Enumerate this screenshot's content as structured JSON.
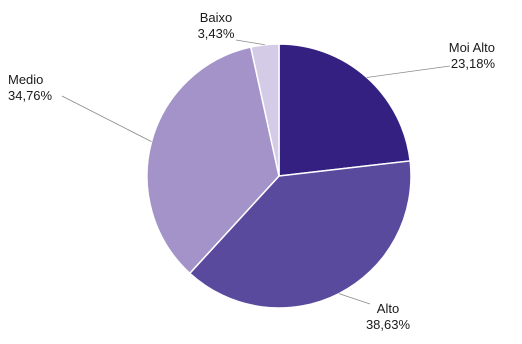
{
  "chart_data": {
    "type": "pie",
    "title": "",
    "legend": "none",
    "start_angle_deg": 90,
    "direction": "clockwise",
    "slices": [
      {
        "label": "Moi Alto",
        "value": 23.18,
        "value_label": "23,18%",
        "color": "#332080"
      },
      {
        "label": "Alto",
        "value": 38.63,
        "value_label": "38,63%",
        "color": "#5a4a9e"
      },
      {
        "label": "Medio",
        "value": 34.76,
        "value_label": "34,76%",
        "color": "#a393c8"
      },
      {
        "label": "Baixo",
        "value": 3.43,
        "value_label": "3,43%",
        "color": "#d4cbe6"
      }
    ]
  }
}
